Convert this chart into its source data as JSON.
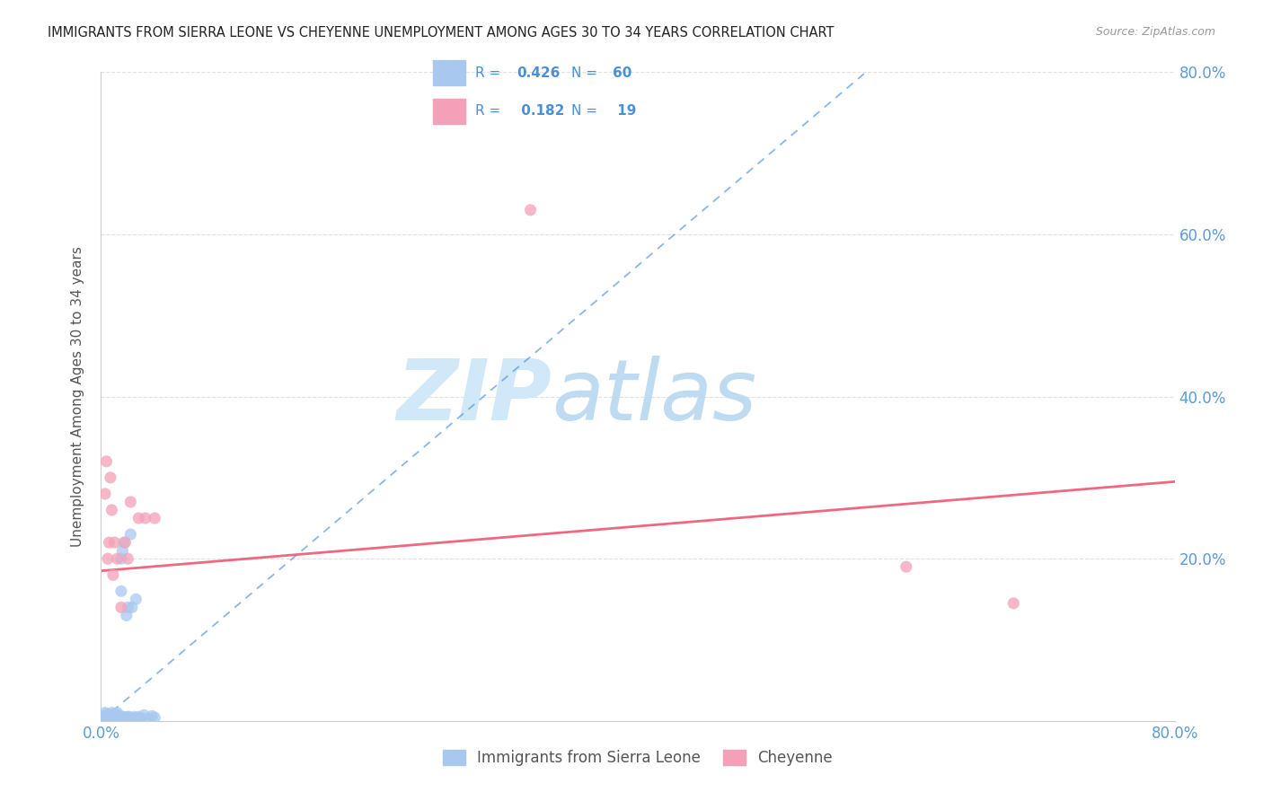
{
  "title": "IMMIGRANTS FROM SIERRA LEONE VS CHEYENNE UNEMPLOYMENT AMONG AGES 30 TO 34 YEARS CORRELATION CHART",
  "source": "Source: ZipAtlas.com",
  "ylabel": "Unemployment Among Ages 30 to 34 years",
  "xlim": [
    0.0,
    0.8
  ],
  "ylim": [
    0.0,
    0.8
  ],
  "xticks": [
    0.0,
    0.1,
    0.2,
    0.3,
    0.4,
    0.5,
    0.6,
    0.7,
    0.8
  ],
  "yticks": [
    0.0,
    0.2,
    0.4,
    0.6,
    0.8
  ],
  "xtick_labels": [
    "0.0%",
    "",
    "",
    "",
    "",
    "",
    "",
    "",
    "80.0%"
  ],
  "ytick_labels_right": [
    "",
    "20.0%",
    "40.0%",
    "60.0%",
    "80.0%"
  ],
  "blue_R": 0.426,
  "blue_N": 60,
  "pink_R": 0.182,
  "pink_N": 19,
  "blue_color": "#a8c8f0",
  "pink_color": "#f4a0b8",
  "blue_line_color": "#4a90d9",
  "pink_line_color": "#e8506a",
  "legend_text_color": "#4a90d9",
  "watermark_zip": "ZIP",
  "watermark_atlas": "atlas",
  "watermark_color": "#d0e8f8",
  "background_color": "#ffffff",
  "grid_color": "#dddddd",
  "title_color": "#222222",
  "axis_label_color": "#555555",
  "tick_label_color": "#5b9bd5",
  "blue_scatter_x": [
    0.002,
    0.003,
    0.003,
    0.004,
    0.004,
    0.005,
    0.005,
    0.006,
    0.006,
    0.007,
    0.007,
    0.008,
    0.008,
    0.009,
    0.009,
    0.01,
    0.01,
    0.011,
    0.011,
    0.012,
    0.012,
    0.013,
    0.013,
    0.014,
    0.015,
    0.016,
    0.016,
    0.017,
    0.018,
    0.019,
    0.02,
    0.021,
    0.022,
    0.023,
    0.024,
    0.025,
    0.026,
    0.028,
    0.03,
    0.032,
    0.035,
    0.038,
    0.04,
    0.002,
    0.003,
    0.004,
    0.005,
    0.006,
    0.007,
    0.008,
    0.009,
    0.01,
    0.011,
    0.012,
    0.013,
    0.014,
    0.015,
    0.016,
    0.018,
    0.02
  ],
  "blue_scatter_y": [
    0.005,
    0.01,
    0.005,
    0.003,
    0.008,
    0.004,
    0.006,
    0.007,
    0.003,
    0.004,
    0.002,
    0.01,
    0.005,
    0.003,
    0.007,
    0.005,
    0.009,
    0.008,
    0.003,
    0.006,
    0.01,
    0.005,
    0.003,
    0.006,
    0.2,
    0.21,
    0.005,
    0.22,
    0.004,
    0.13,
    0.14,
    0.005,
    0.23,
    0.14,
    0.003,
    0.005,
    0.15,
    0.005,
    0.003,
    0.007,
    0.003,
    0.006,
    0.004,
    0.003,
    0.004,
    0.006,
    0.003,
    0.005,
    0.003,
    0.006,
    0.004,
    0.003,
    0.005,
    0.004,
    0.003,
    0.005,
    0.16,
    0.005,
    0.003,
    0.005
  ],
  "pink_scatter_x": [
    0.003,
    0.004,
    0.005,
    0.006,
    0.007,
    0.008,
    0.009,
    0.01,
    0.012,
    0.015,
    0.018,
    0.02,
    0.022,
    0.028,
    0.033,
    0.32,
    0.6,
    0.68,
    0.04
  ],
  "pink_scatter_y": [
    0.28,
    0.32,
    0.2,
    0.22,
    0.3,
    0.26,
    0.18,
    0.22,
    0.2,
    0.14,
    0.22,
    0.2,
    0.27,
    0.25,
    0.25,
    0.63,
    0.19,
    0.145,
    0.25
  ],
  "blue_line_x": [
    0.0,
    0.57
  ],
  "blue_line_y": [
    0.0,
    0.8
  ],
  "pink_line_x": [
    0.0,
    0.8
  ],
  "pink_line_y": [
    0.185,
    0.295
  ],
  "legend_label_blue": "Immigrants from Sierra Leone",
  "legend_label_pink": "Cheyenne"
}
